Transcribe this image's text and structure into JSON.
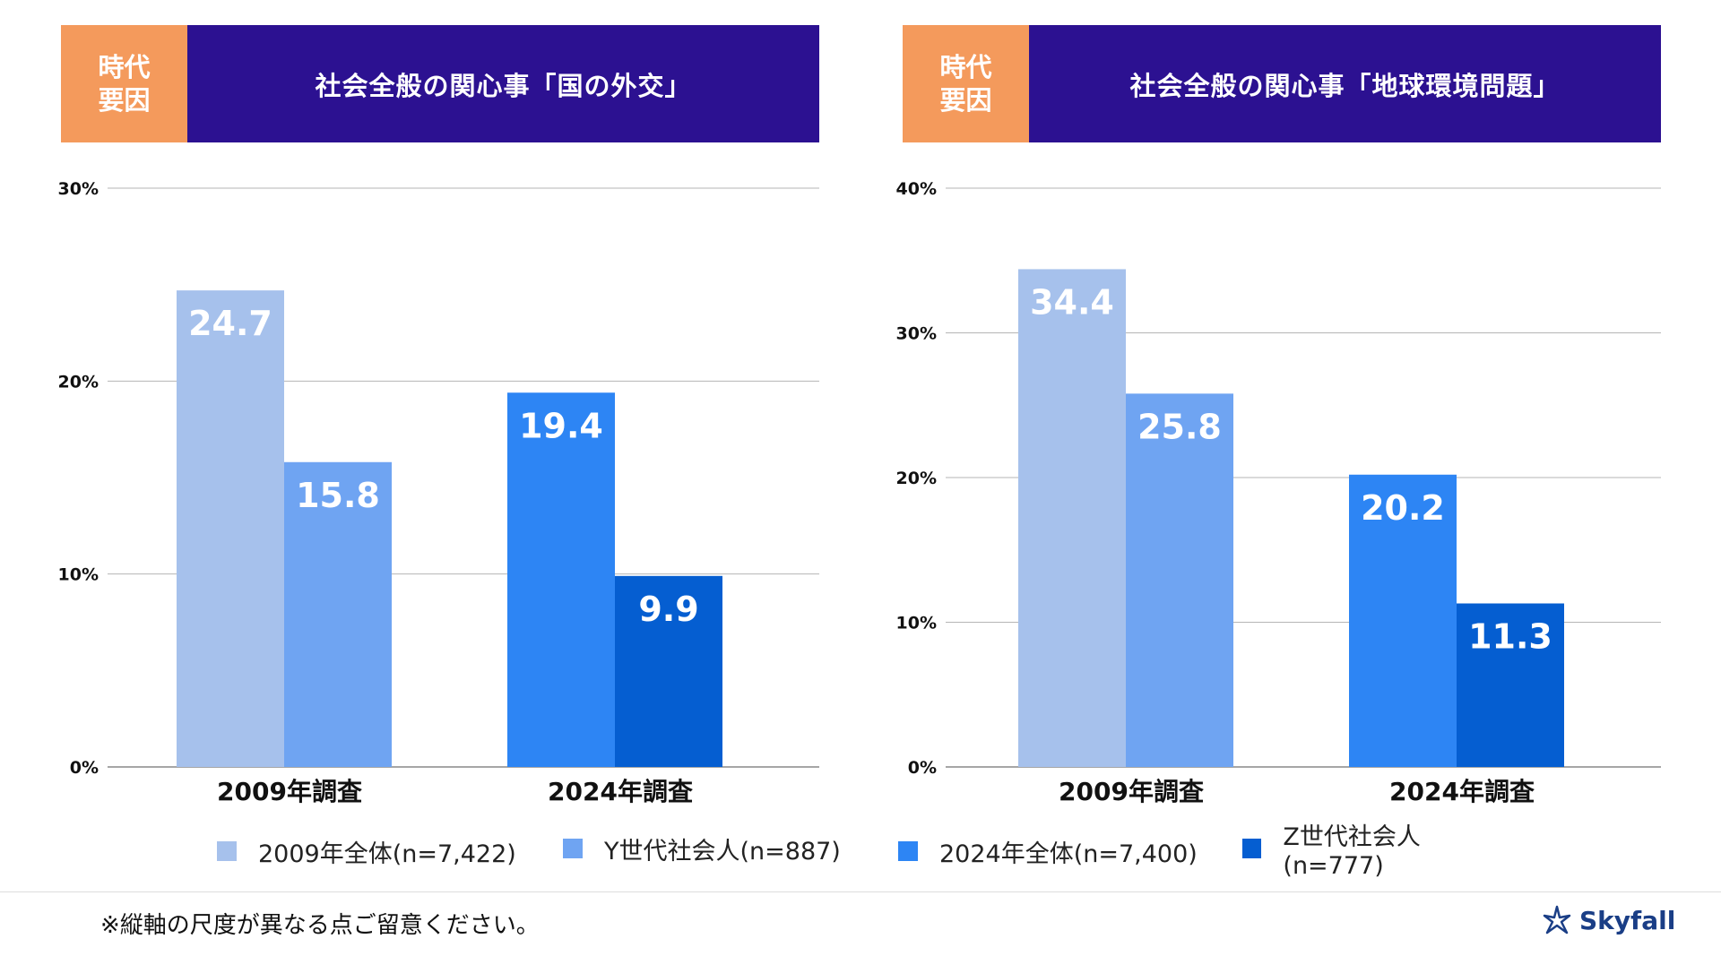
{
  "tag": {
    "line1": "時代",
    "line2": "要因"
  },
  "colors": {
    "tag_bg": "#f49a5c",
    "title_bg": "#2c1191",
    "series": [
      "#a6c1ec",
      "#6fa4f2",
      "#2d85f4",
      "#055ed1"
    ]
  },
  "legend": [
    {
      "label": "2009年全体(n=7,422)"
    },
    {
      "label": "Y世代社会人(n=887)"
    },
    {
      "label": "2024年全体(n=7,400)"
    },
    {
      "label": "Z世代社会人(n=777)"
    }
  ],
  "chart_data": [
    {
      "type": "bar",
      "title": "社会全般の関心事「国の外交」",
      "categories": [
        "2009年調査",
        "2024年調査"
      ],
      "ylim": [
        0,
        30
      ],
      "yticks": [
        0,
        10,
        20,
        30
      ],
      "ytick_labels": [
        "0%",
        "10%",
        "20%",
        "30%"
      ],
      "bars": [
        {
          "category": 0,
          "series": 0,
          "value": 24.7,
          "label": "24.7"
        },
        {
          "category": 0,
          "series": 1,
          "value": 15.8,
          "label": "15.8"
        },
        {
          "category": 1,
          "series": 2,
          "value": 19.4,
          "label": "19.4"
        },
        {
          "category": 1,
          "series": 3,
          "value": 9.9,
          "label": "9.9"
        }
      ]
    },
    {
      "type": "bar",
      "title": "社会全般の関心事「地球環境問題」",
      "categories": [
        "2009年調査",
        "2024年調査"
      ],
      "ylim": [
        0,
        40
      ],
      "yticks": [
        0,
        10,
        20,
        30,
        40
      ],
      "ytick_labels": [
        "0%",
        "10%",
        "20%",
        "30%",
        "40%"
      ],
      "bars": [
        {
          "category": 0,
          "series": 0,
          "value": 34.4,
          "label": "34.4"
        },
        {
          "category": 0,
          "series": 1,
          "value": 25.8,
          "label": "25.8"
        },
        {
          "category": 1,
          "series": 2,
          "value": 20.2,
          "label": "20.2"
        },
        {
          "category": 1,
          "series": 3,
          "value": 11.3,
          "label": "11.3"
        }
      ]
    }
  ],
  "footnote": "※縦軸の尺度が異なる点ご留意ください。",
  "logo": {
    "text": "Skyfall"
  }
}
